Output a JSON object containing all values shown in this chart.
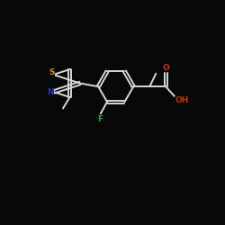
{
  "background_color": "#080808",
  "bond_color": "#d8d8d8",
  "atom_colors": {
    "S": "#c8960c",
    "N": "#3030cc",
    "F": "#30b030",
    "O": "#cc3300",
    "C": "#d8d8d8"
  },
  "figsize": [
    2.5,
    2.5
  ],
  "dpi": 100,
  "xlim": [
    0,
    10
  ],
  "ylim": [
    2,
    9
  ]
}
